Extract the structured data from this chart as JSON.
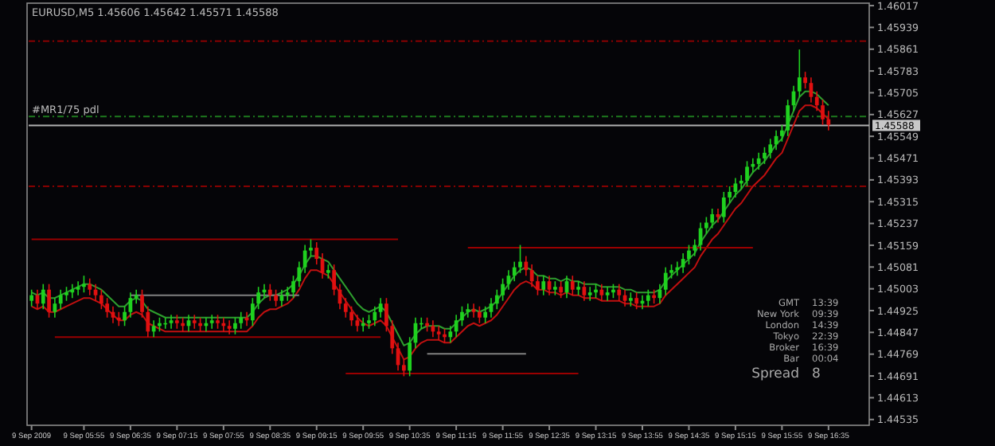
{
  "chart_data": {
    "type": "candlestick",
    "title": "EURUSD,M5  1.45606 1.45642 1.45571 1.45588",
    "categories": [
      "9 Sep 2009",
      null,
      null,
      null,
      null,
      null,
      null,
      null,
      null,
      "9 Sep 05:55",
      null,
      null,
      null,
      null,
      null,
      null,
      null,
      "9 Sep 06:35",
      null,
      null,
      null,
      null,
      null,
      null,
      null,
      "9 Sep 07:15",
      null,
      null,
      null,
      null,
      null,
      null,
      null,
      "9 Sep 07:55",
      null,
      null,
      null,
      null,
      null,
      null,
      null,
      "9 Sep 08:35",
      null,
      null,
      null,
      null,
      null,
      null,
      null,
      "9 Sep 09:15",
      null,
      null,
      null,
      null,
      null,
      null,
      null,
      "9 Sep 09:55",
      null,
      null,
      null,
      null,
      null,
      null,
      null,
      "9 Sep 10:35",
      null,
      null,
      null,
      null,
      null,
      null,
      null,
      "9 Sep 11:15",
      null,
      null,
      null,
      null,
      null,
      null,
      null,
      "9 Sep 11:55",
      null,
      null,
      null,
      null,
      null,
      null,
      null,
      "9 Sep 12:35",
      null,
      null,
      null,
      null,
      null,
      null,
      null,
      "9 Sep 13:15",
      null,
      null,
      null,
      null,
      null,
      null,
      null,
      "9 Sep 13:55",
      null,
      null,
      null,
      null,
      null,
      null,
      null,
      "9 Sep 14:35",
      null,
      null,
      null,
      null,
      null,
      null,
      null,
      "9 Sep 15:15",
      null,
      null,
      null,
      null,
      null,
      null,
      null,
      "9 Sep 15:55",
      null,
      null,
      null,
      null,
      null,
      null,
      null,
      "9 Sep 16:35"
    ],
    "ohlc": [
      [
        1.4496,
        1.45,
        1.4494,
        1.4498
      ],
      [
        1.4498,
        1.45,
        1.4493,
        1.4495
      ],
      [
        1.4495,
        1.4502,
        1.4493,
        1.45
      ],
      [
        1.45,
        1.4502,
        1.449,
        1.4492
      ],
      [
        1.4492,
        1.4497,
        1.449,
        1.4495
      ],
      [
        1.4495,
        1.45,
        1.4493,
        1.4498
      ],
      [
        1.4498,
        1.4501,
        1.4496,
        1.4499
      ],
      [
        1.4499,
        1.4502,
        1.4497,
        1.45
      ],
      [
        1.45,
        1.4503,
        1.4498,
        1.4501
      ],
      [
        1.4501,
        1.4505,
        1.4499,
        1.4502
      ],
      [
        1.4502,
        1.4504,
        1.4498,
        1.45
      ],
      [
        1.45,
        1.4502,
        1.4496,
        1.4498
      ],
      [
        1.4498,
        1.45,
        1.4493,
        1.4495
      ],
      [
        1.4495,
        1.4497,
        1.449,
        1.4492
      ],
      [
        1.4492,
        1.4494,
        1.4488,
        1.449
      ],
      [
        1.449,
        1.4492,
        1.4487,
        1.4489
      ],
      [
        1.4489,
        1.4494,
        1.4487,
        1.4492
      ],
      [
        1.4492,
        1.4499,
        1.449,
        1.4497
      ],
      [
        1.4497,
        1.45,
        1.4495,
        1.4498
      ],
      [
        1.4498,
        1.45,
        1.449,
        1.4492
      ],
      [
        1.4492,
        1.4494,
        1.4483,
        1.4485
      ],
      [
        1.4485,
        1.4489,
        1.4483,
        1.4487
      ],
      [
        1.4487,
        1.449,
        1.4485,
        1.4488
      ],
      [
        1.4488,
        1.449,
        1.4486,
        1.4488
      ],
      [
        1.4488,
        1.4491,
        1.4486,
        1.4489
      ],
      [
        1.4489,
        1.4491,
        1.4486,
        1.4488
      ],
      [
        1.4488,
        1.449,
        1.4485,
        1.4487
      ],
      [
        1.4487,
        1.4491,
        1.4485,
        1.4489
      ],
      [
        1.4489,
        1.4491,
        1.4486,
        1.4488
      ],
      [
        1.4488,
        1.449,
        1.4485,
        1.4487
      ],
      [
        1.4487,
        1.449,
        1.4485,
        1.4488
      ],
      [
        1.4488,
        1.4491,
        1.4486,
        1.4489
      ],
      [
        1.4489,
        1.4491,
        1.4486,
        1.4488
      ],
      [
        1.4488,
        1.449,
        1.4485,
        1.4487
      ],
      [
        1.4487,
        1.4489,
        1.4484,
        1.4486
      ],
      [
        1.4486,
        1.449,
        1.4484,
        1.4488
      ],
      [
        1.4488,
        1.4492,
        1.4486,
        1.449
      ],
      [
        1.449,
        1.4492,
        1.4487,
        1.4489
      ],
      [
        1.4489,
        1.4497,
        1.4487,
        1.4495
      ],
      [
        1.4495,
        1.4501,
        1.4493,
        1.4499
      ],
      [
        1.4499,
        1.4502,
        1.4497,
        1.45
      ],
      [
        1.45,
        1.4502,
        1.4496,
        1.4498
      ],
      [
        1.4498,
        1.45,
        1.4494,
        1.4496
      ],
      [
        1.4496,
        1.45,
        1.4494,
        1.4498
      ],
      [
        1.4498,
        1.4501,
        1.4496,
        1.4499
      ],
      [
        1.4499,
        1.4505,
        1.4497,
        1.4503
      ],
      [
        1.4503,
        1.451,
        1.4501,
        1.4508
      ],
      [
        1.4508,
        1.4516,
        1.4506,
        1.4514
      ],
      [
        1.4514,
        1.4518,
        1.4512,
        1.4515
      ],
      [
        1.4515,
        1.4517,
        1.4509,
        1.4511
      ],
      [
        1.4511,
        1.4513,
        1.4504,
        1.4506
      ],
      [
        1.4506,
        1.4509,
        1.4504,
        1.4507
      ],
      [
        1.4507,
        1.4509,
        1.4498,
        1.45
      ],
      [
        1.45,
        1.4502,
        1.4493,
        1.4495
      ],
      [
        1.4495,
        1.4497,
        1.449,
        1.4492
      ],
      [
        1.4492,
        1.4494,
        1.4487,
        1.4489
      ],
      [
        1.4489,
        1.4491,
        1.4485,
        1.4487
      ],
      [
        1.4487,
        1.449,
        1.4485,
        1.4488
      ],
      [
        1.4488,
        1.4491,
        1.4486,
        1.4489
      ],
      [
        1.4489,
        1.4494,
        1.4487,
        1.4492
      ],
      [
        1.4492,
        1.4497,
        1.449,
        1.4495
      ],
      [
        1.4495,
        1.4497,
        1.4485,
        1.4487
      ],
      [
        1.4487,
        1.4489,
        1.4477,
        1.4479
      ],
      [
        1.4479,
        1.4481,
        1.4471,
        1.4473
      ],
      [
        1.4473,
        1.4475,
        1.4469,
        1.4471
      ],
      [
        1.4471,
        1.4483,
        1.4469,
        1.4481
      ],
      [
        1.4481,
        1.449,
        1.4479,
        1.4488
      ],
      [
        1.4488,
        1.449,
        1.4486,
        1.4488
      ],
      [
        1.4488,
        1.449,
        1.4485,
        1.4487
      ],
      [
        1.4487,
        1.4489,
        1.4483,
        1.4485
      ],
      [
        1.4485,
        1.4487,
        1.4482,
        1.4484
      ],
      [
        1.4484,
        1.4486,
        1.4481,
        1.4483
      ],
      [
        1.4483,
        1.4487,
        1.4481,
        1.4485
      ],
      [
        1.4485,
        1.4491,
        1.4483,
        1.4489
      ],
      [
        1.4489,
        1.4494,
        1.4487,
        1.4492
      ],
      [
        1.4492,
        1.4495,
        1.449,
        1.4493
      ],
      [
        1.4493,
        1.4495,
        1.449,
        1.4492
      ],
      [
        1.4492,
        1.4494,
        1.4488,
        1.449
      ],
      [
        1.449,
        1.4494,
        1.4488,
        1.4492
      ],
      [
        1.4492,
        1.4497,
        1.449,
        1.4495
      ],
      [
        1.4495,
        1.45,
        1.4493,
        1.4498
      ],
      [
        1.4498,
        1.4504,
        1.4496,
        1.4502
      ],
      [
        1.4502,
        1.4507,
        1.45,
        1.4505
      ],
      [
        1.4505,
        1.451,
        1.4503,
        1.4508
      ],
      [
        1.4508,
        1.4516,
        1.4506,
        1.451
      ],
      [
        1.451,
        1.4512,
        1.4505,
        1.4507
      ],
      [
        1.4507,
        1.4509,
        1.4501,
        1.4503
      ],
      [
        1.4503,
        1.4505,
        1.4498,
        1.45
      ],
      [
        1.45,
        1.4505,
        1.4498,
        1.4503
      ],
      [
        1.4503,
        1.4505,
        1.4498,
        1.45
      ],
      [
        1.45,
        1.4503,
        1.4498,
        1.4501
      ],
      [
        1.4501,
        1.4503,
        1.4497,
        1.4499
      ],
      [
        1.4499,
        1.4505,
        1.4497,
        1.4503
      ],
      [
        1.4503,
        1.4505,
        1.4498,
        1.45
      ],
      [
        1.45,
        1.4503,
        1.4498,
        1.4501
      ],
      [
        1.4501,
        1.4503,
        1.4496,
        1.4498
      ],
      [
        1.4498,
        1.4501,
        1.4496,
        1.4499
      ],
      [
        1.4499,
        1.4502,
        1.4497,
        1.45
      ],
      [
        1.45,
        1.4502,
        1.4496,
        1.4498
      ],
      [
        1.4498,
        1.4501,
        1.4496,
        1.4499
      ],
      [
        1.4499,
        1.4502,
        1.4497,
        1.45
      ],
      [
        1.45,
        1.4502,
        1.4496,
        1.4498
      ],
      [
        1.4498,
        1.45,
        1.4494,
        1.4496
      ],
      [
        1.4496,
        1.4499,
        1.4494,
        1.4497
      ],
      [
        1.4497,
        1.4499,
        1.4493,
        1.4495
      ],
      [
        1.4495,
        1.4498,
        1.4493,
        1.4496
      ],
      [
        1.4496,
        1.45,
        1.4494,
        1.4498
      ],
      [
        1.4498,
        1.45,
        1.4495,
        1.4497
      ],
      [
        1.4497,
        1.4502,
        1.4495,
        1.45
      ],
      [
        1.45,
        1.4508,
        1.4498,
        1.4506
      ],
      [
        1.4506,
        1.4509,
        1.4504,
        1.4507
      ],
      [
        1.4507,
        1.451,
        1.4505,
        1.4508
      ],
      [
        1.4508,
        1.4513,
        1.4506,
        1.4511
      ],
      [
        1.4511,
        1.4516,
        1.4509,
        1.4514
      ],
      [
        1.4514,
        1.4518,
        1.4512,
        1.4516
      ],
      [
        1.4516,
        1.4524,
        1.4514,
        1.4522
      ],
      [
        1.4522,
        1.4526,
        1.452,
        1.4524
      ],
      [
        1.4524,
        1.4529,
        1.4522,
        1.4527
      ],
      [
        1.4527,
        1.4529,
        1.4524,
        1.4526
      ],
      [
        1.4526,
        1.4535,
        1.4524,
        1.4533
      ],
      [
        1.4533,
        1.4537,
        1.4531,
        1.4535
      ],
      [
        1.4535,
        1.454,
        1.4533,
        1.4538
      ],
      [
        1.4538,
        1.4541,
        1.4536,
        1.4539
      ],
      [
        1.4539,
        1.4546,
        1.4537,
        1.4544
      ],
      [
        1.4544,
        1.4547,
        1.4542,
        1.4545
      ],
      [
        1.4545,
        1.4549,
        1.4543,
        1.4547
      ],
      [
        1.4547,
        1.4551,
        1.4545,
        1.4549
      ],
      [
        1.4549,
        1.4554,
        1.4547,
        1.4552
      ],
      [
        1.4552,
        1.4557,
        1.455,
        1.4555
      ],
      [
        1.4555,
        1.4559,
        1.4553,
        1.4557
      ],
      [
        1.4557,
        1.4568,
        1.4555,
        1.4566
      ],
      [
        1.4566,
        1.4573,
        1.4564,
        1.4571
      ],
      [
        1.4571,
        1.4586,
        1.4569,
        1.4576
      ],
      [
        1.4576,
        1.4578,
        1.4572,
        1.4574
      ],
      [
        1.4574,
        1.4576,
        1.4567,
        1.4569
      ],
      [
        1.4569,
        1.4571,
        1.4564,
        1.4566
      ],
      [
        1.4566,
        1.4568,
        1.4559,
        1.4561
      ],
      [
        1.4561,
        1.4564,
        1.4557,
        1.4559
      ]
    ],
    "colors": [
      "#1fd11f",
      "#e01010",
      "#1fd11f",
      "#e01010",
      "#1fd11f",
      "#1fd11f",
      "#1fd11f",
      "#1fd11f",
      "#1fd11f",
      "#1fd11f",
      "#e01010",
      "#e01010",
      "#e01010",
      "#e01010",
      "#e01010",
      "#e01010",
      "#1fd11f",
      "#1fd11f",
      "#1fd11f",
      "#e01010",
      "#e01010",
      "#1fd11f",
      "#1fd11f",
      "#1fd11f",
      "#1fd11f",
      "#e01010",
      "#e01010",
      "#1fd11f",
      "#e01010",
      "#e01010",
      "#1fd11f",
      "#1fd11f",
      "#e01010",
      "#e01010",
      "#e01010",
      "#1fd11f",
      "#1fd11f",
      "#e01010",
      "#1fd11f",
      "#1fd11f",
      "#1fd11f",
      "#e01010",
      "#e01010",
      "#1fd11f",
      "#1fd11f",
      "#1fd11f",
      "#1fd11f",
      "#1fd11f",
      "#1fd11f",
      "#e01010",
      "#e01010",
      "#1fd11f",
      "#e01010",
      "#e01010",
      "#e01010",
      "#e01010",
      "#e01010",
      "#1fd11f",
      "#1fd11f",
      "#1fd11f",
      "#1fd11f",
      "#e01010",
      "#e01010",
      "#e01010",
      "#e01010",
      "#1fd11f",
      "#1fd11f",
      "#1fd11f",
      "#e01010",
      "#e01010",
      "#e01010",
      "#e01010",
      "#1fd11f",
      "#1fd11f",
      "#1fd11f",
      "#1fd11f",
      "#e01010",
      "#e01010",
      "#1fd11f",
      "#1fd11f",
      "#1fd11f",
      "#1fd11f",
      "#1fd11f",
      "#1fd11f",
      "#1fd11f",
      "#e01010",
      "#e01010",
      "#e01010",
      "#1fd11f",
      "#e01010",
      "#1fd11f",
      "#e01010",
      "#1fd11f",
      "#e01010",
      "#1fd11f",
      "#e01010",
      "#1fd11f",
      "#1fd11f",
      "#e01010",
      "#1fd11f",
      "#1fd11f",
      "#e01010",
      "#e01010",
      "#1fd11f",
      "#e01010",
      "#1fd11f",
      "#1fd11f",
      "#e01010",
      "#1fd11f",
      "#1fd11f",
      "#1fd11f",
      "#1fd11f",
      "#1fd11f",
      "#1fd11f",
      "#1fd11f",
      "#1fd11f",
      "#1fd11f",
      "#1fd11f",
      "#e01010",
      "#1fd11f",
      "#1fd11f",
      "#1fd11f",
      "#1fd11f",
      "#1fd11f",
      "#1fd11f",
      "#1fd11f",
      "#1fd11f",
      "#1fd11f",
      "#1fd11f",
      "#1fd11f",
      "#1fd11f",
      "#1fd11f",
      "#1fd11f",
      "#e01010",
      "#e01010",
      "#e01010",
      "#e01010",
      "#e01010"
    ],
    "series": [
      {
        "type": "line",
        "color": "#2e9e2e",
        "values": [
          1.4499,
          1.4498,
          1.4499,
          1.4497,
          1.4497,
          1.4498,
          1.4499,
          1.45,
          1.4501,
          1.4502,
          1.4502,
          1.4501,
          1.45,
          1.4498,
          1.4496,
          1.4494,
          1.4494,
          1.4496,
          1.4497,
          1.4496,
          1.4493,
          1.4492,
          1.4491,
          1.449,
          1.449,
          1.449,
          1.449,
          1.449,
          1.449,
          1.449,
          1.449,
          1.449,
          1.449,
          1.449,
          1.449,
          1.449,
          1.449,
          1.449,
          1.4492,
          1.4495,
          1.4497,
          1.4498,
          1.4498,
          1.4499,
          1.45,
          1.4502,
          1.4505,
          1.4509,
          1.4512,
          1.4512,
          1.4511,
          1.451,
          1.4507,
          1.4504,
          1.4501,
          1.4498,
          1.4495,
          1.4493,
          1.4492,
          1.4493,
          1.4494,
          1.4492,
          1.4488,
          1.4484,
          1.448,
          1.4481,
          1.4484,
          1.4486,
          1.4487,
          1.4487,
          1.4487,
          1.4486,
          1.4486,
          1.4488,
          1.449,
          1.4492,
          1.4493,
          1.4492,
          1.4493,
          1.4494,
          1.4496,
          1.4499,
          1.4502,
          1.4505,
          1.4507,
          1.4508,
          1.4507,
          1.4505,
          1.4505,
          1.4504,
          1.4504,
          1.4503,
          1.4504,
          1.4503,
          1.4503,
          1.4502,
          1.4502,
          1.4502,
          1.4501,
          1.4501,
          1.4501,
          1.4501,
          1.45,
          1.45,
          1.4499,
          1.4499,
          1.4499,
          1.4499,
          1.45,
          1.4503,
          1.4505,
          1.4507,
          1.4509,
          1.4511,
          1.4513,
          1.4517,
          1.452,
          1.4523,
          1.4525,
          1.4528,
          1.4531,
          1.4534,
          1.4536,
          1.4539,
          1.4542,
          1.4544,
          1.4546,
          1.4549,
          1.4552,
          1.4554,
          1.4559,
          1.4564,
          1.4569,
          1.4571,
          1.4571,
          1.457,
          1.4568,
          1.4566
        ]
      },
      {
        "type": "line",
        "color": "#c01010",
        "values": [
          1.4494,
          1.4493,
          1.4494,
          1.4492,
          1.4492,
          1.4493,
          1.4494,
          1.4495,
          1.4496,
          1.4497,
          1.4497,
          1.4496,
          1.4495,
          1.4493,
          1.4491,
          1.4489,
          1.4489,
          1.4491,
          1.4492,
          1.4491,
          1.4488,
          1.4487,
          1.4486,
          1.4485,
          1.4485,
          1.4485,
          1.4485,
          1.4485,
          1.4485,
          1.4485,
          1.4485,
          1.4485,
          1.4485,
          1.4485,
          1.4485,
          1.4485,
          1.4485,
          1.4485,
          1.4487,
          1.449,
          1.4492,
          1.4493,
          1.4493,
          1.4494,
          1.4495,
          1.4497,
          1.45,
          1.4504,
          1.4507,
          1.4507,
          1.4506,
          1.4505,
          1.4502,
          1.4499,
          1.4496,
          1.4493,
          1.449,
          1.4488,
          1.4487,
          1.4488,
          1.4489,
          1.4487,
          1.4483,
          1.4479,
          1.4475,
          1.4476,
          1.4479,
          1.4481,
          1.4482,
          1.4482,
          1.4482,
          1.4481,
          1.4481,
          1.4483,
          1.4485,
          1.4487,
          1.4488,
          1.4487,
          1.4488,
          1.4489,
          1.4491,
          1.4494,
          1.4497,
          1.45,
          1.4502,
          1.4503,
          1.4502,
          1.45,
          1.45,
          1.4499,
          1.4499,
          1.4498,
          1.4499,
          1.4498,
          1.4498,
          1.4497,
          1.4497,
          1.4497,
          1.4496,
          1.4496,
          1.4496,
          1.4496,
          1.4495,
          1.4495,
          1.4494,
          1.4494,
          1.4494,
          1.4494,
          1.4495,
          1.4498,
          1.45,
          1.4502,
          1.4504,
          1.4506,
          1.4508,
          1.4512,
          1.4515,
          1.4518,
          1.452,
          1.4523,
          1.4526,
          1.4529,
          1.4531,
          1.4534,
          1.4537,
          1.4539,
          1.4541,
          1.4544,
          1.4547,
          1.4549,
          1.4554,
          1.4559,
          1.4564,
          1.4566,
          1.4566,
          1.4565,
          1.4563,
          1.4561
        ]
      },
      {
        "type": "line",
        "color": "#9a0000",
        "values": [
          1.4518,
          1.4518,
          1.4518,
          1.4518,
          1.4518,
          1.4518,
          1.4518,
          1.4518,
          1.4518,
          1.4518,
          1.4518,
          1.4518,
          1.4518,
          1.4518,
          1.4518,
          1.4518,
          1.4518,
          1.4518,
          1.4518,
          1.4518,
          1.4518,
          1.4518,
          1.4518,
          1.4518,
          1.4518,
          1.4518,
          1.4518,
          1.4518,
          1.4518,
          1.4518,
          1.4518,
          1.4518,
          1.4518,
          1.4518,
          1.4518,
          1.4518,
          1.4518,
          1.4518,
          1.4518,
          1.4518,
          1.4518,
          1.4518,
          1.4518,
          1.4518,
          1.4518,
          1.4518,
          1.4518,
          1.4518,
          1.4518,
          1.4518,
          1.4518,
          1.4518,
          1.4518,
          1.4518,
          1.4518,
          1.4518,
          1.4518,
          1.4518,
          1.4518,
          1.4518,
          1.4518,
          1.4518,
          1.4518,
          1.4518,
          null,
          null,
          null,
          null,
          null,
          null,
          null,
          null,
          null,
          null,
          null,
          null,
          null,
          null,
          null,
          null,
          null,
          null,
          null,
          null,
          null,
          null,
          null,
          null,
          null,
          null,
          null,
          null,
          null,
          null,
          null,
          null,
          null,
          null,
          null,
          null,
          null,
          null,
          null,
          null,
          null,
          null,
          null,
          null,
          null,
          null,
          null,
          null,
          null,
          null,
          null,
          null,
          null,
          null,
          null,
          null,
          null,
          null,
          null,
          null,
          null,
          null,
          null,
          null,
          null,
          null,
          null,
          null,
          null,
          null,
          null,
          null,
          null,
          null
        ]
      },
      {
        "type": "line",
        "color": "#9a0000",
        "values": [
          null,
          null,
          null,
          null,
          null,
          null,
          null,
          null,
          null,
          null,
          null,
          null,
          null,
          null,
          null,
          null,
          null,
          null,
          null,
          null,
          null,
          null,
          null,
          null,
          null,
          null,
          null,
          null,
          null,
          null,
          null,
          null,
          null,
          null,
          null,
          null,
          null,
          null,
          null,
          null,
          null,
          null,
          null,
          null,
          null,
          null,
          null,
          null,
          null,
          null,
          null,
          null,
          null,
          null,
          null,
          null,
          null,
          null,
          null,
          null,
          null,
          null,
          null,
          null,
          null,
          null,
          null,
          null,
          null,
          null,
          null,
          null,
          null,
          null,
          null,
          1.4515,
          1.4515,
          1.4515,
          1.4515,
          1.4515,
          1.4515,
          1.4515,
          1.4515,
          1.4515,
          1.4515,
          1.4515,
          1.4515,
          1.4515,
          1.4515,
          1.4515,
          1.4515,
          1.4515,
          1.4515,
          1.4515,
          1.4515,
          1.4515,
          1.4515,
          1.4515,
          1.4515,
          1.4515,
          1.4515,
          1.4515,
          1.4515,
          1.4515,
          1.4515,
          1.4515,
          1.4515,
          1.4515,
          1.4515,
          1.4515,
          1.4515,
          1.4515,
          1.4515,
          1.4515,
          1.4515,
          1.4515,
          1.4515,
          1.4515,
          1.4515,
          1.4515,
          1.4515,
          1.4515,
          1.4515,
          1.4515,
          1.4515,
          null,
          null,
          null,
          null,
          null,
          null,
          null,
          null,
          null,
          null,
          null,
          null,
          null
        ]
      },
      {
        "type": "line",
        "color": "#9a0000",
        "values": [
          null,
          null,
          null,
          null,
          1.4483,
          1.4483,
          1.4483,
          1.4483,
          1.4483,
          1.4483,
          1.4483,
          1.4483,
          1.4483,
          1.4483,
          1.4483,
          1.4483,
          1.4483,
          1.4483,
          1.4483,
          1.4483,
          1.4483,
          1.4483,
          1.4483,
          1.4483,
          1.4483,
          1.4483,
          1.4483,
          1.4483,
          1.4483,
          1.4483,
          1.4483,
          1.4483,
          1.4483,
          1.4483,
          1.4483,
          1.4483,
          1.4483,
          1.4483,
          1.4483,
          1.4483,
          1.4483,
          1.4483,
          1.4483,
          1.4483,
          1.4483,
          1.4483,
          1.4483,
          1.4483,
          1.4483,
          1.4483,
          1.4483,
          1.4483,
          1.4483,
          1.4483,
          1.4483,
          1.4483,
          1.4483,
          1.4483,
          1.4483,
          1.4483,
          1.4483,
          null,
          null,
          null,
          null,
          null,
          null,
          null,
          null,
          null,
          null,
          null,
          null,
          null,
          null,
          null,
          null,
          null,
          null,
          null,
          null,
          null,
          null,
          null,
          null,
          null,
          null,
          null,
          null,
          null,
          null,
          null,
          null,
          null,
          null,
          null,
          null,
          null,
          null,
          null,
          null,
          null,
          null,
          null,
          null,
          null,
          null,
          null,
          null,
          null,
          null,
          null,
          null,
          null,
          null,
          null,
          null,
          null,
          null,
          null,
          null,
          null,
          null,
          null,
          null,
          null,
          null,
          null,
          null,
          null,
          null,
          null,
          null,
          null,
          null,
          null,
          null,
          null
        ]
      },
      {
        "type": "line",
        "color": "#9a0000",
        "values": [
          null,
          null,
          null,
          null,
          null,
          null,
          null,
          null,
          null,
          null,
          null,
          null,
          null,
          null,
          null,
          null,
          null,
          null,
          null,
          null,
          null,
          null,
          null,
          null,
          null,
          null,
          null,
          null,
          null,
          null,
          null,
          null,
          null,
          null,
          null,
          null,
          null,
          null,
          null,
          null,
          null,
          null,
          null,
          null,
          null,
          null,
          null,
          null,
          null,
          null,
          null,
          null,
          null,
          null,
          1.447,
          1.447,
          1.447,
          1.447,
          1.447,
          1.447,
          1.447,
          1.447,
          1.447,
          1.447,
          1.447,
          1.447,
          1.447,
          1.447,
          1.447,
          1.447,
          1.447,
          1.447,
          1.447,
          1.447,
          1.447,
          1.447,
          1.447,
          1.447,
          1.447,
          1.447,
          1.447,
          1.447,
          1.447,
          1.447,
          1.447,
          1.447,
          1.447,
          1.447,
          1.447,
          1.447,
          1.447,
          1.447,
          1.447,
          1.447,
          1.447,
          null,
          null,
          null,
          null,
          null,
          null,
          null,
          null,
          null,
          null,
          null,
          null,
          null,
          null,
          null,
          null,
          null,
          null,
          null,
          null,
          null,
          null,
          null,
          null,
          null,
          null,
          null,
          null,
          null,
          null,
          null,
          null,
          null,
          null,
          null,
          null,
          null,
          null,
          null,
          null,
          null,
          null,
          null
        ]
      },
      {
        "type": "line",
        "color": "#808080",
        "values": [
          null,
          null,
          null,
          null,
          null,
          null,
          null,
          null,
          null,
          null,
          null,
          null,
          null,
          null,
          null,
          null,
          null,
          1.4498,
          1.4498,
          1.4498,
          1.4498,
          1.4498,
          1.4498,
          1.4498,
          1.4498,
          1.4498,
          1.4498,
          1.4498,
          1.4498,
          1.4498,
          1.4498,
          1.4498,
          1.4498,
          1.4498,
          1.4498,
          1.4498,
          1.4498,
          1.4498,
          1.4498,
          1.4498,
          1.4498,
          1.4498,
          1.4498,
          1.4498,
          1.4498,
          1.4498,
          1.4498,
          null,
          null,
          null,
          null,
          null,
          null,
          null,
          null,
          null,
          null,
          null,
          null,
          null,
          null,
          null,
          null,
          null,
          null,
          null,
          null,
          null,
          null,
          null,
          null,
          null,
          null,
          null,
          null,
          null,
          null,
          null,
          null,
          null,
          null,
          null,
          null,
          null,
          null,
          null,
          null,
          null,
          null,
          null,
          null,
          null,
          null,
          null,
          null,
          null,
          null,
          null,
          null,
          null,
          null,
          null,
          null,
          null,
          null,
          null,
          null,
          null,
          null,
          null,
          null,
          null,
          null,
          null,
          null,
          null,
          null,
          null,
          null,
          null,
          null,
          null,
          null,
          null,
          null,
          null,
          null,
          null,
          null,
          null,
          null,
          null,
          null,
          null,
          null,
          null,
          null,
          null
        ]
      },
      {
        "type": "line",
        "color": "#808080",
        "values": [
          null,
          null,
          null,
          null,
          null,
          null,
          null,
          null,
          null,
          null,
          null,
          null,
          null,
          null,
          null,
          null,
          null,
          null,
          null,
          null,
          null,
          null,
          null,
          null,
          null,
          null,
          null,
          null,
          null,
          null,
          null,
          null,
          null,
          null,
          null,
          null,
          null,
          null,
          null,
          null,
          null,
          null,
          null,
          null,
          null,
          null,
          null,
          null,
          null,
          null,
          null,
          null,
          null,
          null,
          null,
          null,
          null,
          null,
          null,
          null,
          null,
          null,
          null,
          null,
          null,
          null,
          null,
          null,
          1.4477,
          1.4477,
          1.4477,
          1.4477,
          1.4477,
          1.4477,
          1.4477,
          1.4477,
          1.4477,
          1.4477,
          1.4477,
          1.4477,
          1.4477,
          1.4477,
          1.4477,
          1.4477,
          1.4477,
          1.4477,
          null,
          null,
          null,
          null,
          null,
          null,
          null,
          null,
          null,
          null,
          null,
          null,
          null,
          null,
          null,
          null,
          null,
          null,
          null,
          null,
          null,
          null,
          null,
          null,
          null,
          null,
          null,
          null,
          null,
          null,
          null,
          null,
          null,
          null,
          null,
          null,
          null,
          null,
          null,
          null,
          null,
          null,
          null,
          null,
          null,
          null,
          null,
          null,
          null,
          null,
          null,
          null
        ]
      }
    ],
    "ref_lines": [
      {
        "axis": "y",
        "value": 1.4589,
        "color": "#9a0000",
        "line_style": "dashed"
      },
      {
        "axis": "y",
        "value": 1.4537,
        "color": "#9a0000",
        "line_style": "dashed"
      },
      {
        "axis": "y",
        "value": 1.4562,
        "color": "#1e7a1e",
        "line_style": "dashed",
        "label": "#MR1/75 pdl"
      },
      {
        "axis": "y",
        "value": 1.45588,
        "color": "#b0b0b0",
        "line_style": "solid",
        "label": "1.45588"
      }
    ],
    "ylim": [
      1.4452,
      1.4602
    ],
    "yticks": [
      1.46017,
      1.45939,
      1.45861,
      1.45783,
      1.45705,
      1.45627,
      1.45549,
      1.45471,
      1.45393,
      1.45315,
      1.45237,
      1.45159,
      1.45081,
      1.45003,
      1.44925,
      1.44847,
      1.44769,
      1.44691,
      1.44613,
      1.44535
    ],
    "annotations": [
      "GMT",
      "13:39",
      "New York",
      "09:39",
      "London",
      "14:39",
      "Tokyo",
      "22:39",
      "Broker",
      "16:39",
      "Bar",
      "00:04",
      "Spread",
      "8"
    ]
  }
}
